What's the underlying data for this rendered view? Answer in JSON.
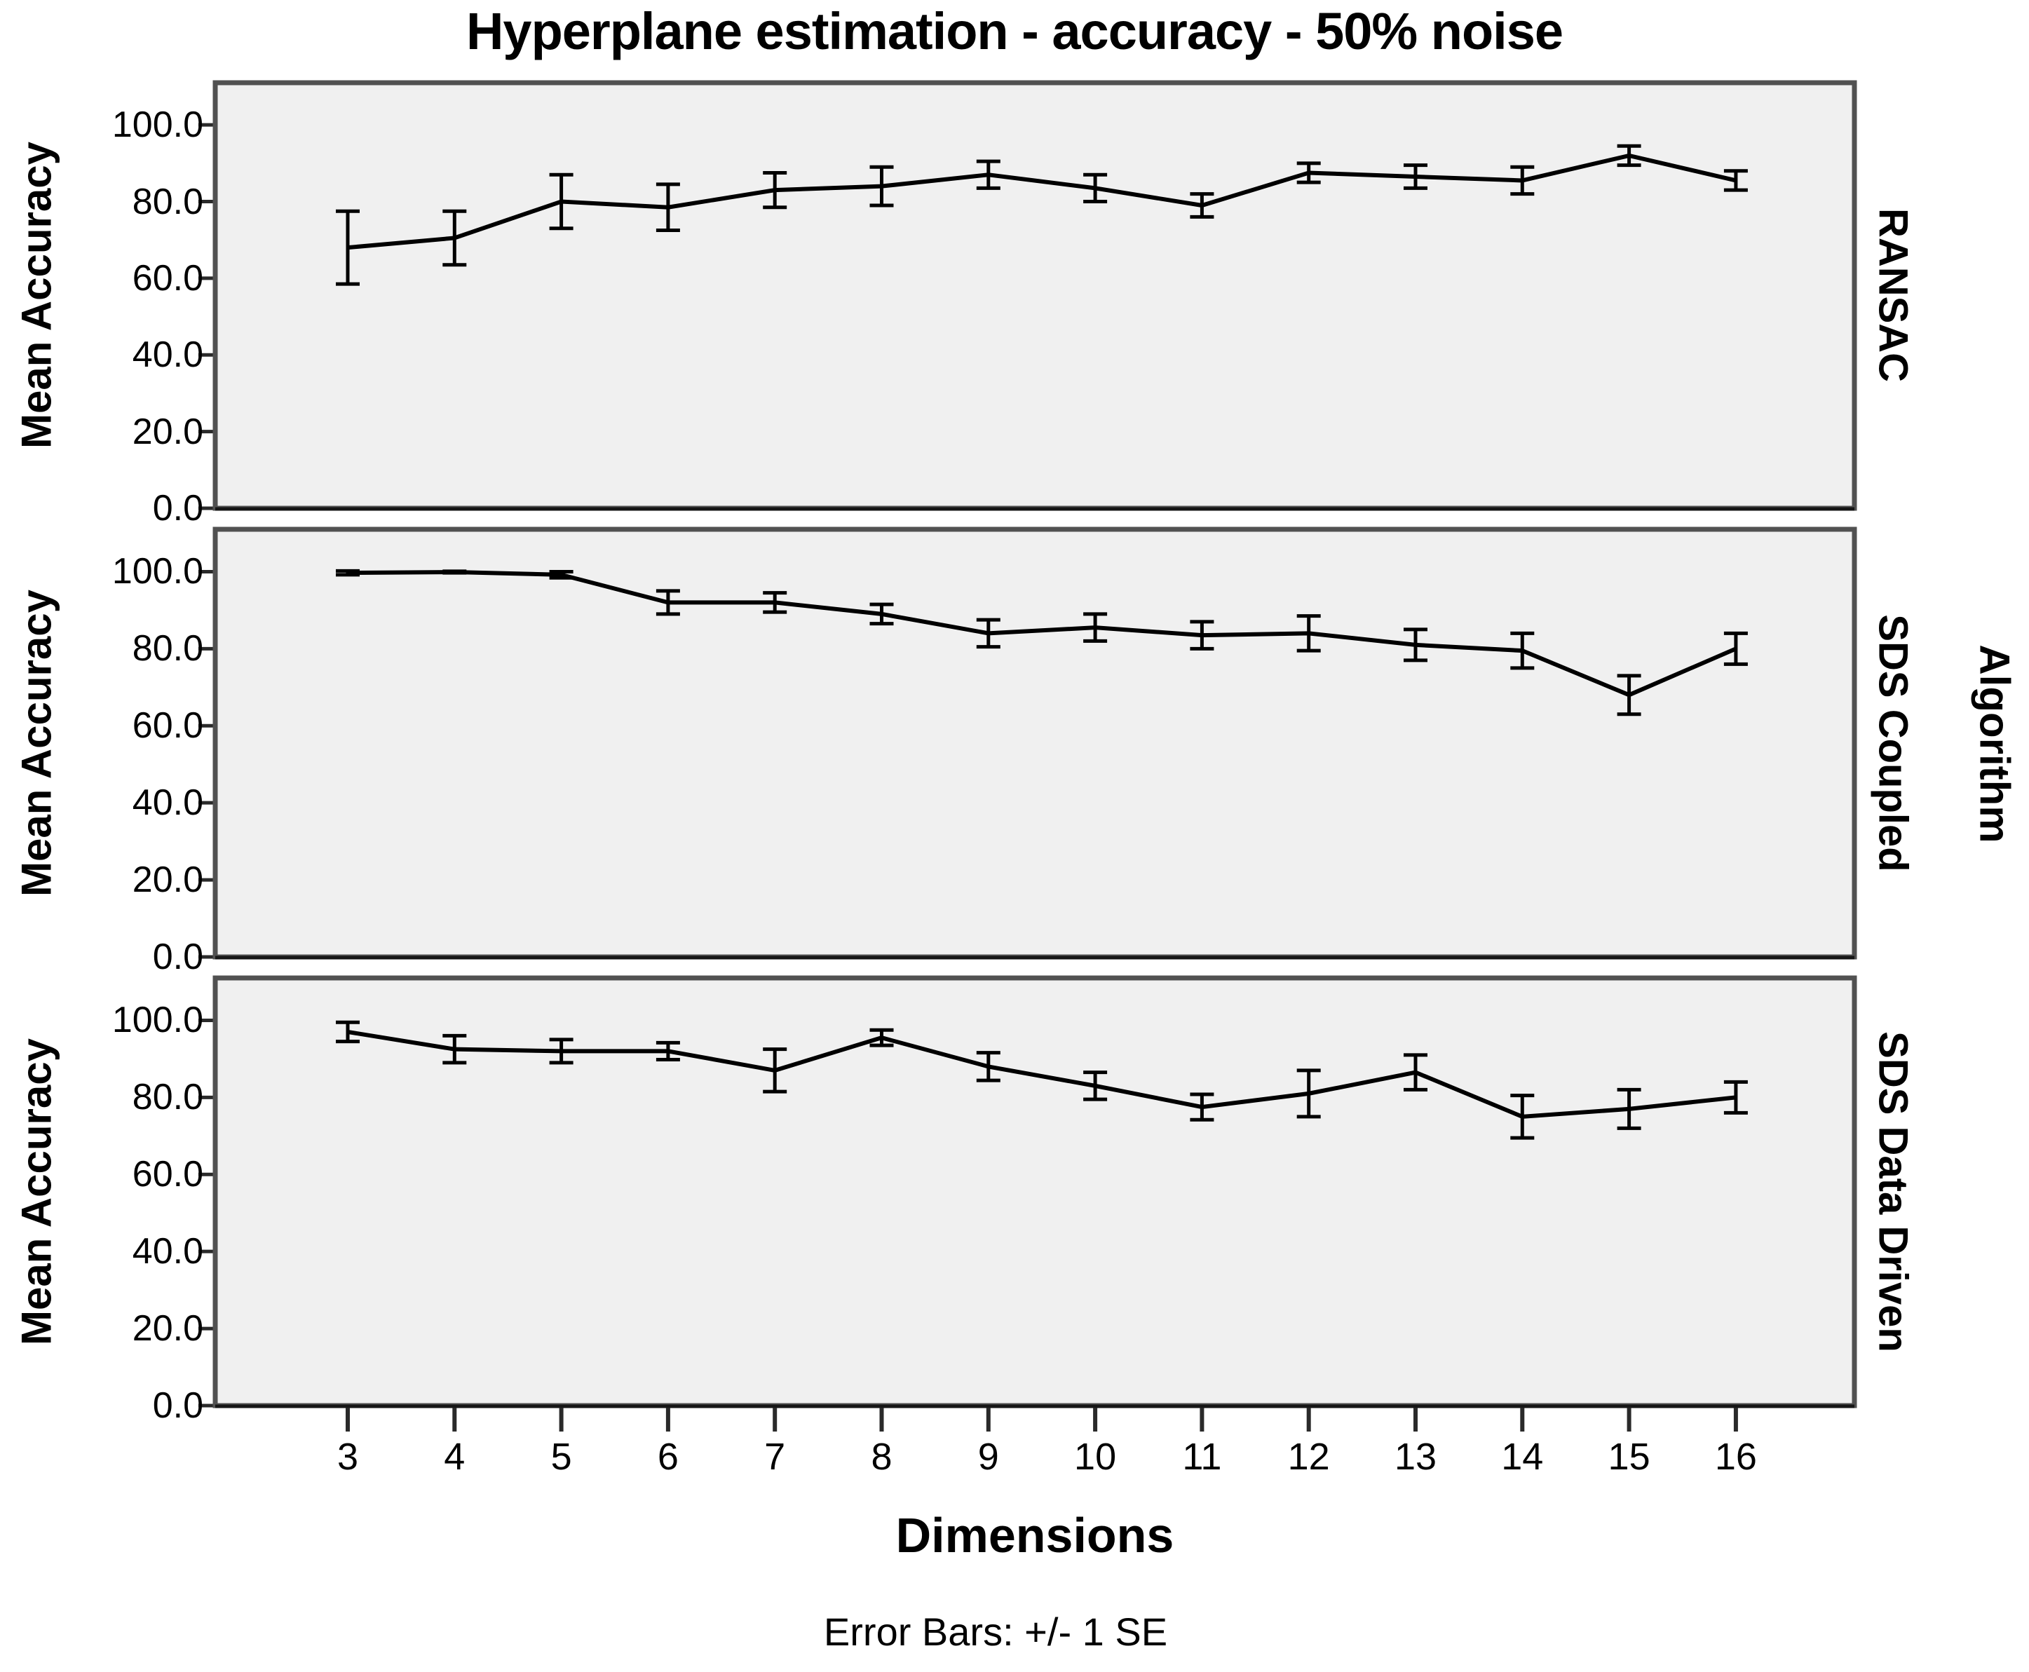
{
  "title": "Hyperplane estimation - accuracy - 50% noise",
  "footer_note": "Error Bars: +/- 1 SE",
  "axes": {
    "x_label": "Dimensions",
    "y_label": "Mean Accuracy",
    "panel_group_label": "Algorithm",
    "y_tick_labels": [
      "100.0",
      "80.0",
      "60.0",
      "40.0",
      "20.0",
      "0.0"
    ],
    "x_tick_labels": [
      "3",
      "4",
      "5",
      "6",
      "7",
      "8",
      "9",
      "10",
      "11",
      "12",
      "13",
      "14",
      "15",
      "16"
    ]
  },
  "colors": {
    "panel_background": "#f0f0f0",
    "panel_border": "#515151",
    "series_line": "#000000",
    "error_bar": "#000000",
    "tick_mark": "#2a2a2a"
  },
  "chart_data": {
    "type": "line",
    "title": "Hyperplane estimation - accuracy - 50% noise",
    "xlabel": "Dimensions",
    "ylabel": "Mean Accuracy",
    "panel_group_label": "Algorithm",
    "error_bars": "+/- 1 SE",
    "x": [
      3,
      4,
      5,
      6,
      7,
      8,
      9,
      10,
      11,
      12,
      13,
      14,
      15,
      16
    ],
    "ylim": [
      0,
      111
    ],
    "y_ticks": [
      100,
      80,
      60,
      40,
      20,
      0
    ],
    "grid": false,
    "legend_position": "none",
    "panels": [
      {
        "label": "RANSAC",
        "means": [
          68,
          70.5,
          80,
          78.5,
          83,
          84,
          87,
          83.5,
          79,
          87.5,
          86.5,
          85.5,
          92,
          85.5
        ],
        "se": [
          9.5,
          7,
          7,
          6,
          4.5,
          5,
          3.5,
          3.5,
          3,
          2.5,
          3,
          3.5,
          2.5,
          2.5
        ]
      },
      {
        "label": "SDS Coupled",
        "means": [
          99.7,
          99.9,
          99.2,
          92,
          92,
          89,
          84,
          85.5,
          83.5,
          84,
          81,
          79.5,
          68,
          80
        ],
        "se": [
          0.5,
          0.2,
          0.8,
          3,
          2.5,
          2.5,
          3.5,
          3.5,
          3.5,
          4.5,
          4,
          4.5,
          5,
          4
        ]
      },
      {
        "label": "SDS Data Driven",
        "means": [
          97,
          92.5,
          92,
          92,
          87,
          95.5,
          88,
          83,
          77.5,
          81,
          86.5,
          75,
          77,
          80
        ],
        "se": [
          2.5,
          3.5,
          3,
          2.2,
          5.5,
          2,
          3.6,
          3.5,
          3.3,
          6,
          4.5,
          5.5,
          5,
          4
        ]
      }
    ]
  }
}
